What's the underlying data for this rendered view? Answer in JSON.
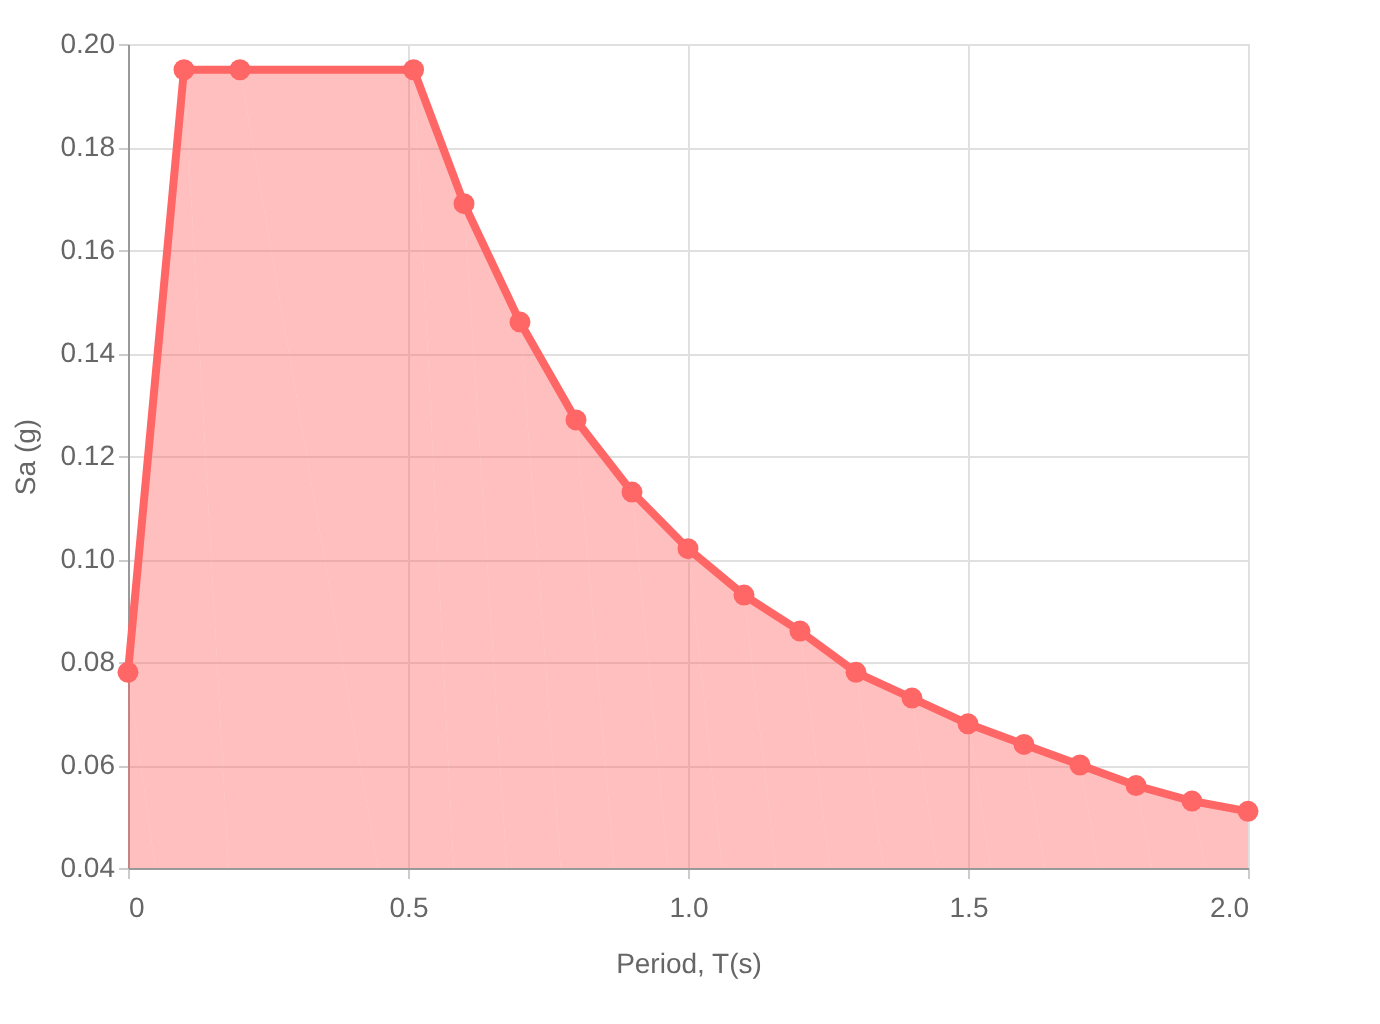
{
  "chart_data": {
    "type": "area",
    "xlabel": "Period, T(s)",
    "ylabel": "Sa (g)",
    "x": [
      0,
      0.1,
      0.2,
      0.51,
      0.6,
      0.7,
      0.8,
      0.9,
      1.0,
      1.1,
      1.2,
      1.3,
      1.4,
      1.5,
      1.6,
      1.7,
      1.8,
      1.9,
      2.0
    ],
    "series": [
      {
        "color": "#ff6666",
        "values": [
          0.078,
          0.195,
          0.195,
          0.195,
          0.169,
          0.146,
          0.127,
          0.113,
          0.102,
          0.093,
          0.086,
          0.078,
          0.073,
          0.068,
          0.064,
          0.06,
          0.056,
          0.053,
          0.051
        ]
      }
    ],
    "xlim": [
      0,
      2.0
    ],
    "xticks": [
      0,
      0.5,
      {
        "value": 1.0,
        "label": "1.0"
      },
      1.5,
      {
        "value": 2.0,
        "label": "2.0"
      }
    ],
    "ylim": [
      0.04,
      0.2
    ],
    "yticks": [
      0.04,
      0.06,
      0.08,
      {
        "value": 0.1,
        "label": "0.10"
      },
      0.12,
      0.14,
      0.16,
      0.18,
      {
        "value": 0.2,
        "label": "0.20"
      }
    ],
    "grid": true,
    "marker": "circle",
    "line_style": "solid"
  }
}
